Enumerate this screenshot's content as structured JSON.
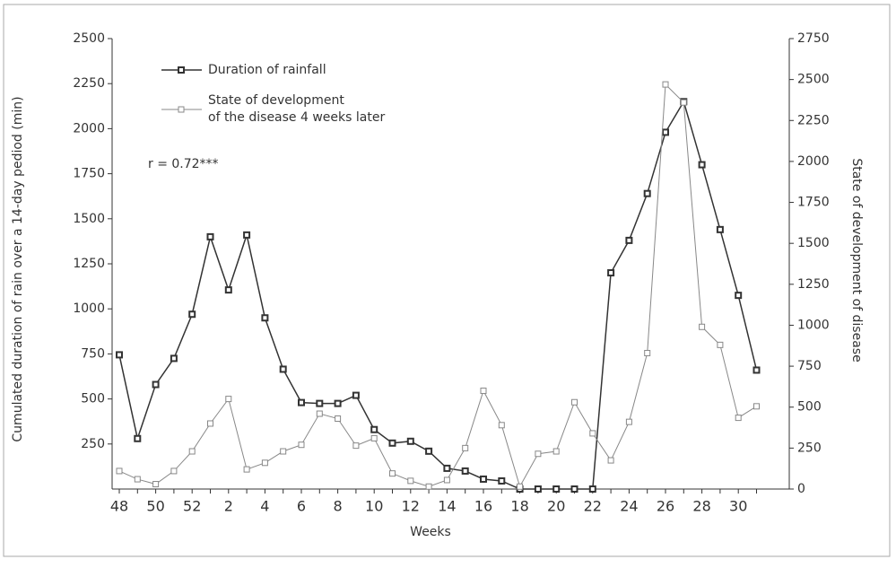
{
  "chart_data": {
    "type": "line",
    "x_label": "Weeks",
    "y_label": "Cumulated duration of rain over a 14-day pediod (min)",
    "y2_label": "State of development of disease",
    "annotation": "r = 0.72***",
    "categories": [
      "48",
      null,
      "50",
      null,
      "52",
      null,
      "2",
      null,
      "4",
      null,
      "6",
      null,
      "8",
      null,
      "10",
      null,
      "12",
      null,
      "14",
      null,
      "16",
      null,
      "18",
      null,
      "20",
      null,
      "22",
      null,
      "24",
      null,
      "26",
      null,
      "28",
      null,
      "30",
      null
    ],
    "series": [
      {
        "name": "Duration of rainfall",
        "color": "#333333",
        "values": [
          745,
          280,
          580,
          725,
          970,
          1400,
          1105,
          1410,
          950,
          665,
          480,
          475,
          475,
          520,
          330,
          255,
          265,
          210,
          115,
          100,
          55,
          45,
          0,
          0,
          0,
          0,
          0,
          1200,
          1380,
          1640,
          1980,
          2150,
          1800,
          1440,
          1075,
          660
        ]
      },
      {
        "name": "State of development of the disease 4 weeks later",
        "color": "#888888",
        "axis": "y2",
        "values": [
          110,
          60,
          30,
          110,
          230,
          400,
          550,
          120,
          160,
          230,
          270,
          460,
          430,
          265,
          310,
          95,
          50,
          15,
          55,
          250,
          600,
          390,
          15,
          215,
          230,
          530,
          340,
          175,
          410,
          830,
          2470,
          2360,
          990,
          880,
          435,
          505
        ]
      }
    ],
    "ylim": [
      0,
      2500
    ],
    "yticks": [
      250,
      500,
      750,
      1000,
      1250,
      1500,
      1750,
      2000,
      2250,
      2500
    ],
    "y2lim": [
      0,
      2750
    ],
    "y2ticks": [
      0,
      250,
      500,
      750,
      1000,
      1250,
      1500,
      1750,
      2000,
      2250,
      2500,
      2750
    ]
  }
}
